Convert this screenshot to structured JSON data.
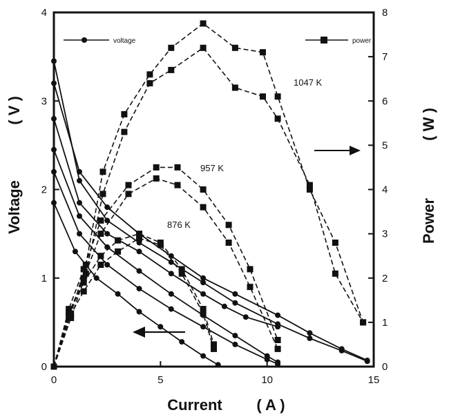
{
  "chart_data": {
    "type": "line",
    "xlabel": "Current",
    "xunit": "( A )",
    "ylabel": "Voltage",
    "yunit": "( V )",
    "y2label": "Power",
    "y2unit": "( W )",
    "xlim": [
      0,
      15
    ],
    "ylim": [
      0,
      4
    ],
    "y2lim": [
      0,
      8
    ],
    "x_ticks": [
      "0",
      "5",
      "10",
      "15"
    ],
    "y_ticks": [
      "0",
      "1",
      "2",
      "3",
      "4"
    ],
    "y2_ticks": [
      "0",
      "1",
      "2",
      "3",
      "4",
      "5",
      "6",
      "7",
      "8"
    ],
    "legend": {
      "voltage": "voltage",
      "power": "power"
    },
    "annotations": [
      "1047 K",
      "957 K",
      "876 K"
    ],
    "grid": false,
    "voltage_series": [
      {
        "x": [
          0,
          1.0,
          2.0,
          3.0,
          4.0,
          5.0,
          6.0,
          7.0,
          7.7
        ],
        "y": [
          1.85,
          1.3,
          1.0,
          0.82,
          0.62,
          0.45,
          0.28,
          0.12,
          0.02
        ]
      },
      {
        "x": [
          0,
          1.2,
          2.5,
          4.0,
          5.5,
          7.0,
          8.5,
          10.0,
          10.5
        ],
        "y": [
          2.2,
          1.5,
          1.15,
          0.88,
          0.65,
          0.45,
          0.25,
          0.08,
          0.03
        ]
      },
      {
        "x": [
          0,
          1.2,
          2.5,
          4.0,
          5.5,
          7.0,
          8.5,
          10.0,
          10.5
        ],
        "y": [
          2.45,
          1.7,
          1.35,
          1.08,
          0.82,
          0.58,
          0.35,
          0.12,
          0.05
        ]
      },
      {
        "x": [
          0,
          1.2,
          2.5,
          4.0,
          5.5,
          7.0,
          8.0,
          9.0,
          10.5
        ],
        "y": [
          2.8,
          1.85,
          1.5,
          1.3,
          1.05,
          0.82,
          0.68,
          0.56,
          0.45
        ]
      },
      {
        "x": [
          0,
          1.2,
          2.5,
          4.0,
          5.5,
          7.0,
          8.5,
          10.5,
          12.0,
          13.5,
          14.7
        ],
        "y": [
          3.2,
          2.2,
          1.8,
          1.5,
          1.25,
          1.0,
          0.82,
          0.58,
          0.38,
          0.2,
          0.07
        ]
      },
      {
        "x": [
          0,
          1.2,
          2.5,
          4.0,
          5.5,
          7.0,
          8.5,
          10.5,
          12.0,
          13.5,
          14.7
        ],
        "y": [
          3.45,
          2.1,
          1.65,
          1.4,
          1.18,
          0.95,
          0.72,
          0.48,
          0.32,
          0.18,
          0.06
        ]
      }
    ],
    "power_series": [
      {
        "x": [
          0,
          0.7,
          1.4,
          2.2,
          3.0,
          4.0,
          5.0,
          6.0,
          7.0,
          7.5
        ],
        "y": [
          0,
          1.2,
          1.9,
          2.5,
          2.85,
          3.0,
          2.8,
          2.2,
          1.3,
          0.5
        ]
      },
      {
        "x": [
          0,
          0.7,
          1.4,
          2.2,
          3.0,
          4.0,
          5.0,
          6.0,
          7.0,
          7.5
        ],
        "y": [
          0,
          1.1,
          1.7,
          2.3,
          2.6,
          2.9,
          2.75,
          2.1,
          1.2,
          0.4
        ]
      },
      {
        "x": [
          0,
          0.7,
          1.4,
          2.2,
          3.5,
          4.8,
          5.8,
          7.0,
          8.2,
          9.2,
          10.5
        ],
        "y": [
          0,
          1.3,
          2.2,
          3.3,
          4.1,
          4.5,
          4.5,
          4.0,
          3.2,
          2.2,
          0.6
        ]
      },
      {
        "x": [
          0,
          0.7,
          1.4,
          2.2,
          3.5,
          4.8,
          5.8,
          7.0,
          8.2,
          9.2,
          10.5
        ],
        "y": [
          0,
          1.2,
          2.0,
          3.0,
          3.9,
          4.25,
          4.1,
          3.6,
          2.8,
          1.8,
          0.4
        ]
      },
      {
        "x": [
          0,
          0.8,
          1.5,
          2.3,
          3.3,
          4.5,
          5.5,
          7.0,
          8.5,
          9.8,
          10.5,
          12.0,
          13.2,
          14.5
        ],
        "y": [
          0,
          1.2,
          2.3,
          4.4,
          5.7,
          6.6,
          7.2,
          7.75,
          7.2,
          7.1,
          6.1,
          4.0,
          2.8,
          1.0
        ]
      },
      {
        "x": [
          0,
          0.8,
          1.5,
          2.3,
          3.3,
          4.5,
          5.5,
          7.0,
          8.5,
          9.8,
          10.5,
          12.0,
          13.2,
          14.5
        ],
        "y": [
          0,
          1.1,
          2.1,
          3.9,
          5.3,
          6.4,
          6.7,
          7.2,
          6.3,
          6.1,
          5.6,
          4.1,
          2.1,
          1.0
        ]
      }
    ]
  }
}
